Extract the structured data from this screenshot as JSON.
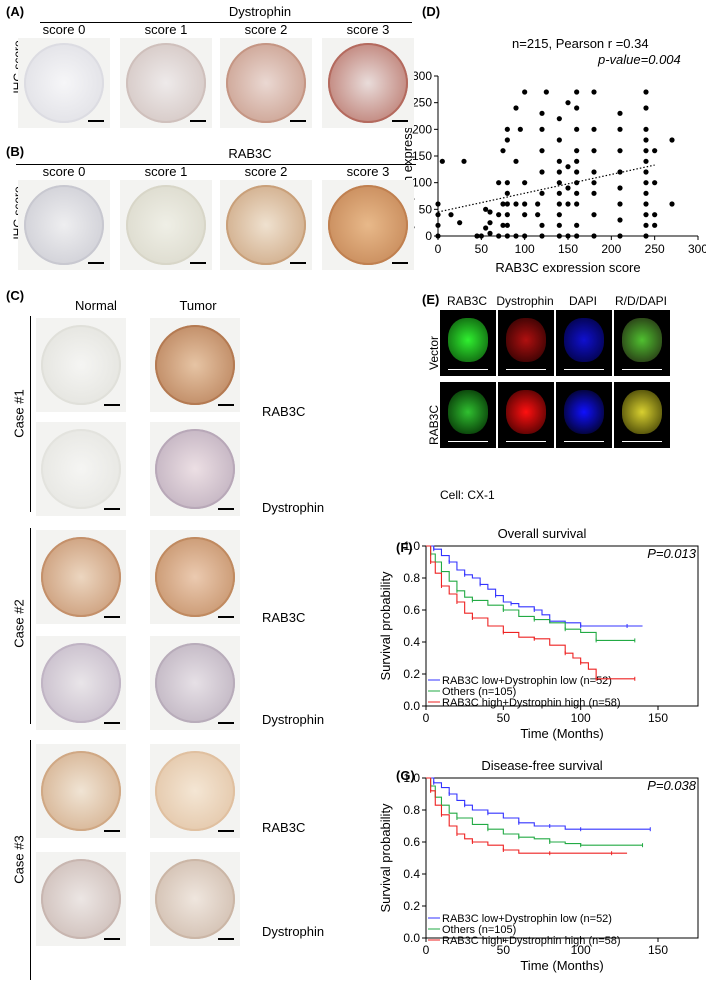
{
  "panelA": {
    "label": "(A)",
    "title": "Dystrophin",
    "rowlabel": "IHC score",
    "scores": [
      "score 0",
      "score 1",
      "score 2",
      "score 3"
    ]
  },
  "panelB": {
    "label": "(B)",
    "title": "RAB3C",
    "rowlabel": "IHC score",
    "scores": [
      "score 0",
      "score 1",
      "score 2",
      "score 3"
    ]
  },
  "panelC": {
    "label": "(C)",
    "col_normal": "Normal",
    "col_tumor": "Tumor",
    "cases": [
      "Case #1",
      "Case #2",
      "Case #3"
    ],
    "markers": [
      "RAB3C",
      "Dystrophin",
      "RAB3C",
      "Dystrophin",
      "RAB3C",
      "Dystrophin"
    ]
  },
  "panelD": {
    "label": "(D)",
    "annot1": "n=215, Pearson r =0.34",
    "annot2": "p-value=0.004"
  },
  "panelE": {
    "label": "(E)",
    "cols": [
      "RAB3C",
      "Dystrophin",
      "DAPI",
      "R/D/DAPI"
    ],
    "rows": [
      "Vector",
      "RAB3C"
    ],
    "cell": "Cell: CX-1"
  },
  "panelF": {
    "label": "(F)"
  },
  "panelG": {
    "label": "(G)"
  },
  "colors": {
    "low": "#3333ff",
    "others": "#22aa44",
    "high": "#ee2222",
    "brown": "#b5703f",
    "green": "#10d010",
    "red": "#e01010",
    "blue": "#2020ff"
  },
  "chart_data": [
    {
      "type": "scatter",
      "xlabel": "RAB3C expression score",
      "ylabel": "Dystrophin expression score",
      "xlim": [
        0,
        300
      ],
      "ylim": [
        0,
        300
      ],
      "xticks": [
        0,
        50,
        100,
        150,
        200,
        250,
        300
      ],
      "yticks": [
        0,
        50,
        100,
        150,
        200,
        250,
        300
      ],
      "trend": {
        "x": [
          0,
          250
        ],
        "y": [
          45,
          133
        ]
      },
      "points": [
        [
          0,
          0
        ],
        [
          0,
          20
        ],
        [
          0,
          40
        ],
        [
          0,
          60
        ],
        [
          5,
          140
        ],
        [
          15,
          40
        ],
        [
          25,
          25
        ],
        [
          30,
          140
        ],
        [
          45,
          0
        ],
        [
          50,
          0
        ],
        [
          55,
          15
        ],
        [
          55,
          50
        ],
        [
          60,
          5
        ],
        [
          60,
          25
        ],
        [
          60,
          45
        ],
        [
          70,
          0
        ],
        [
          70,
          40
        ],
        [
          70,
          100
        ],
        [
          75,
          20
        ],
        [
          75,
          60
        ],
        [
          75,
          160
        ],
        [
          80,
          0
        ],
        [
          80,
          20
        ],
        [
          80,
          40
        ],
        [
          80,
          60
        ],
        [
          80,
          80
        ],
        [
          80,
          100
        ],
        [
          80,
          180
        ],
        [
          80,
          200
        ],
        [
          90,
          0
        ],
        [
          90,
          60
        ],
        [
          90,
          140
        ],
        [
          90,
          240
        ],
        [
          95,
          200
        ],
        [
          100,
          0
        ],
        [
          100,
          40
        ],
        [
          100,
          60
        ],
        [
          100,
          100
        ],
        [
          100,
          270
        ],
        [
          115,
          40
        ],
        [
          115,
          60
        ],
        [
          120,
          0
        ],
        [
          120,
          20
        ],
        [
          120,
          80
        ],
        [
          120,
          120
        ],
        [
          120,
          160
        ],
        [
          120,
          200
        ],
        [
          120,
          230
        ],
        [
          125,
          270
        ],
        [
          140,
          0
        ],
        [
          140,
          20
        ],
        [
          140,
          40
        ],
        [
          140,
          60
        ],
        [
          140,
          80
        ],
        [
          140,
          100
        ],
        [
          140,
          120
        ],
        [
          140,
          140
        ],
        [
          140,
          180
        ],
        [
          140,
          220
        ],
        [
          150,
          0
        ],
        [
          150,
          60
        ],
        [
          150,
          90
        ],
        [
          150,
          130
        ],
        [
          150,
          250
        ],
        [
          160,
          0
        ],
        [
          160,
          20
        ],
        [
          160,
          60
        ],
        [
          160,
          80
        ],
        [
          160,
          100
        ],
        [
          160,
          120
        ],
        [
          160,
          140
        ],
        [
          160,
          160
        ],
        [
          160,
          200
        ],
        [
          160,
          240
        ],
        [
          160,
          270
        ],
        [
          180,
          0
        ],
        [
          180,
          40
        ],
        [
          180,
          80
        ],
        [
          180,
          100
        ],
        [
          180,
          120
        ],
        [
          180,
          160
        ],
        [
          180,
          200
        ],
        [
          180,
          270
        ],
        [
          210,
          0
        ],
        [
          210,
          30
        ],
        [
          210,
          60
        ],
        [
          210,
          90
        ],
        [
          210,
          120
        ],
        [
          210,
          160
        ],
        [
          210,
          200
        ],
        [
          210,
          230
        ],
        [
          240,
          0
        ],
        [
          240,
          20
        ],
        [
          240,
          40
        ],
        [
          240,
          60
        ],
        [
          240,
          80
        ],
        [
          240,
          100
        ],
        [
          240,
          120
        ],
        [
          240,
          140
        ],
        [
          240,
          160
        ],
        [
          240,
          180
        ],
        [
          240,
          200
        ],
        [
          240,
          240
        ],
        [
          240,
          270
        ],
        [
          250,
          20
        ],
        [
          250,
          40
        ],
        [
          250,
          100
        ],
        [
          250,
          160
        ],
        [
          270,
          60
        ],
        [
          270,
          180
        ]
      ]
    },
    {
      "type": "line",
      "title": "Overall survival",
      "pvalue": "P=0.013",
      "xlabel": "Time (Months)",
      "ylabel": "Survival probability",
      "xlim": [
        0,
        150
      ],
      "ylim": [
        0,
        1
      ],
      "xticks": [
        0,
        50,
        100,
        150
      ],
      "yticks": [
        0.0,
        0.2,
        0.4,
        0.6,
        0.8,
        1.0
      ],
      "series": [
        {
          "name": "RAB3C low+Dystrophin low (n=52)",
          "color": "#3333ff",
          "points": [
            [
              0,
              1
            ],
            [
              5,
              0.98
            ],
            [
              10,
              0.94
            ],
            [
              15,
              0.9
            ],
            [
              20,
              0.85
            ],
            [
              25,
              0.82
            ],
            [
              30,
              0.8
            ],
            [
              35,
              0.76
            ],
            [
              40,
              0.73
            ],
            [
              45,
              0.69
            ],
            [
              50,
              0.65
            ],
            [
              55,
              0.64
            ],
            [
              60,
              0.62
            ],
            [
              70,
              0.6
            ],
            [
              75,
              0.57
            ],
            [
              80,
              0.53
            ],
            [
              90,
              0.52
            ],
            [
              100,
              0.5
            ],
            [
              110,
              0.5
            ],
            [
              130,
              0.5
            ],
            [
              140,
              0.5
            ]
          ]
        },
        {
          "name": "Others (n=105)",
          "color": "#22aa44",
          "points": [
            [
              0,
              1
            ],
            [
              3,
              0.95
            ],
            [
              6,
              0.9
            ],
            [
              10,
              0.84
            ],
            [
              15,
              0.78
            ],
            [
              20,
              0.72
            ],
            [
              25,
              0.68
            ],
            [
              30,
              0.66
            ],
            [
              40,
              0.63
            ],
            [
              50,
              0.6
            ],
            [
              60,
              0.56
            ],
            [
              70,
              0.54
            ],
            [
              80,
              0.52
            ],
            [
              90,
              0.48
            ],
            [
              100,
              0.46
            ],
            [
              110,
              0.41
            ],
            [
              120,
              0.41
            ],
            [
              135,
              0.41
            ]
          ]
        },
        {
          "name": "RAB3C high+Dystrophin high (n=58)",
          "color": "#ee2222",
          "points": [
            [
              0,
              1
            ],
            [
              3,
              0.9
            ],
            [
              6,
              0.83
            ],
            [
              10,
              0.75
            ],
            [
              15,
              0.7
            ],
            [
              20,
              0.65
            ],
            [
              25,
              0.58
            ],
            [
              30,
              0.55
            ],
            [
              40,
              0.5
            ],
            [
              50,
              0.46
            ],
            [
              60,
              0.43
            ],
            [
              70,
              0.42
            ],
            [
              80,
              0.38
            ],
            [
              90,
              0.33
            ],
            [
              95,
              0.3
            ],
            [
              100,
              0.27
            ],
            [
              105,
              0.23
            ],
            [
              110,
              0.17
            ],
            [
              125,
              0.17
            ],
            [
              135,
              0.17
            ]
          ]
        }
      ]
    },
    {
      "type": "line",
      "title": "Disease-free survival",
      "pvalue": "P=0.038",
      "xlabel": "Time (Months)",
      "ylabel": "Survival probability",
      "xlim": [
        0,
        150
      ],
      "ylim": [
        0,
        1
      ],
      "xticks": [
        0,
        50,
        100,
        150
      ],
      "yticks": [
        0.0,
        0.2,
        0.4,
        0.6,
        0.8,
        1.0
      ],
      "series": [
        {
          "name": "RAB3C low+Dystrophin low (n=52)",
          "color": "#3333ff",
          "points": [
            [
              0,
              1
            ],
            [
              5,
              0.97
            ],
            [
              10,
              0.94
            ],
            [
              15,
              0.9
            ],
            [
              20,
              0.86
            ],
            [
              25,
              0.83
            ],
            [
              30,
              0.8
            ],
            [
              40,
              0.78
            ],
            [
              50,
              0.75
            ],
            [
              60,
              0.72
            ],
            [
              70,
              0.7
            ],
            [
              80,
              0.7
            ],
            [
              90,
              0.68
            ],
            [
              100,
              0.68
            ],
            [
              120,
              0.68
            ],
            [
              145,
              0.68
            ]
          ]
        },
        {
          "name": "Others (n=105)",
          "color": "#22aa44",
          "points": [
            [
              0,
              1
            ],
            [
              3,
              0.95
            ],
            [
              6,
              0.88
            ],
            [
              10,
              0.83
            ],
            [
              15,
              0.78
            ],
            [
              20,
              0.75
            ],
            [
              30,
              0.71
            ],
            [
              40,
              0.68
            ],
            [
              50,
              0.65
            ],
            [
              60,
              0.63
            ],
            [
              70,
              0.62
            ],
            [
              80,
              0.6
            ],
            [
              90,
              0.59
            ],
            [
              100,
              0.58
            ],
            [
              120,
              0.58
            ],
            [
              140,
              0.58
            ]
          ]
        },
        {
          "name": "RAB3C high+Dystrophin high (n=58)",
          "color": "#ee2222",
          "points": [
            [
              0,
              1
            ],
            [
              3,
              0.92
            ],
            [
              6,
              0.83
            ],
            [
              10,
              0.77
            ],
            [
              15,
              0.7
            ],
            [
              20,
              0.65
            ],
            [
              25,
              0.62
            ],
            [
              30,
              0.6
            ],
            [
              40,
              0.58
            ],
            [
              50,
              0.55
            ],
            [
              60,
              0.53
            ],
            [
              80,
              0.53
            ],
            [
              100,
              0.53
            ],
            [
              120,
              0.53
            ],
            [
              130,
              0.53
            ]
          ]
        }
      ]
    }
  ]
}
